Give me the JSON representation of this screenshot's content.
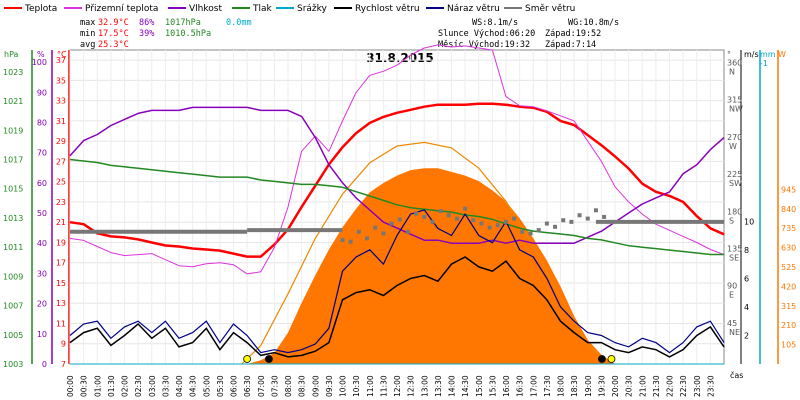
{
  "chart_data": {
    "type": "line",
    "title": "31.8.2015",
    "xlabel": "čas",
    "legend": [
      {
        "name": "Teplota",
        "color": "#ff0000"
      },
      {
        "name": "Přizemní teplota",
        "color": "#dd33dd"
      },
      {
        "name": "Vlhkost",
        "color": "#8800bb"
      },
      {
        "name": "Tlak",
        "color": "#228822"
      },
      {
        "name": "Srážky",
        "color": "#00aacc"
      },
      {
        "name": "Rychlost větru",
        "color": "#000000"
      },
      {
        "name": "Náraz větru",
        "color": "#000088"
      },
      {
        "name": "Směr větru",
        "color": "#777777"
      }
    ],
    "stats": {
      "max_label": "max",
      "max_temp": "32.9°C",
      "max_hum": "86%",
      "max_press": "1017hPa",
      "rain": "0.0mm",
      "min_label": "min",
      "min_temp": "17.5°C",
      "min_hum": "39%",
      "min_press": "1010.5hPa",
      "avg_label": "avg",
      "avg_temp": "25.3°C",
      "ws": "WS:8.1m/s",
      "wg": "WG:10.8m/s",
      "sun_rise": "Slunce Východ:06:20",
      "sun_set": "Západ:19:52",
      "moon_rise": "Měsíc Východ:19:32",
      "moon_set": "Západ:7:14"
    },
    "axes": {
      "hpa_label": "hPa",
      "pct_label": "%",
      "c_label": "°C",
      "deg_label": "°",
      "ms_label": "m/s",
      "mm_label": "mm",
      "w_label": "W",
      "hpa_ticks": [
        "1003",
        "1005",
        "1007",
        "1009",
        "1011",
        "1013",
        "1015",
        "1017",
        "1019",
        "1021",
        "1023"
      ],
      "pct_ticks": [
        "0",
        "10",
        "20",
        "30",
        "40",
        "50",
        "60",
        "70",
        "80",
        "90",
        "100"
      ],
      "c_ticks": [
        "7",
        "9",
        "11",
        "13",
        "15",
        "17",
        "19",
        "21",
        "23",
        "25",
        "27",
        "29",
        "31",
        "33",
        "35",
        "37"
      ],
      "dir_ticks": [
        {
          "v": "360",
          "d": "N"
        },
        {
          "v": "315",
          "d": "NW"
        },
        {
          "v": "270",
          "d": "W"
        },
        {
          "v": "225",
          "d": "SW"
        },
        {
          "v": "180",
          "d": "S"
        },
        {
          "v": "135",
          "d": "SE"
        },
        {
          "v": "90",
          "d": "E"
        },
        {
          "v": "45",
          "d": "NE"
        }
      ],
      "ms_ticks": [
        "10",
        "8",
        "6",
        "4",
        "2"
      ],
      "ms_top": "-1",
      "w_ticks": [
        "945",
        "840",
        "735",
        "630",
        "525",
        "420",
        "315",
        "210",
        "105"
      ],
      "temp_range": [
        7,
        38
      ],
      "hum_range": [
        0,
        104
      ],
      "press_range": [
        1003,
        1024.5
      ],
      "dir_range": [
        0,
        380
      ],
      "wind_range": [
        0,
        22
      ],
      "solar_range": [
        0,
        1700
      ]
    },
    "x_ticks": [
      "00:00",
      "00:30",
      "01:00",
      "01:30",
      "02:00",
      "02:30",
      "03:00",
      "03:30",
      "04:00",
      "04:30",
      "05:00",
      "05:30",
      "06:00",
      "06:30",
      "07:00",
      "07:30",
      "08:00",
      "08:30",
      "09:00",
      "09:30",
      "10:00",
      "10:30",
      "11:00",
      "11:30",
      "12:00",
      "12:30",
      "13:00",
      "13:30",
      "14:00",
      "14:30",
      "15:00",
      "15:30",
      "16:00",
      "16:30",
      "17:00",
      "17:30",
      "18:00",
      "18:30",
      "19:00",
      "19:30",
      "20:00",
      "20:30",
      "21:00",
      "21:30",
      "22:00",
      "22:30",
      "23:00",
      "23:30"
    ],
    "series": [
      {
        "name": "Teplota",
        "color": "#ff0000",
        "axis": "temp",
        "width": 2.5,
        "x": [
          0,
          0.5,
          1,
          1.5,
          2,
          2.5,
          3,
          3.5,
          4,
          4.5,
          5,
          5.5,
          6,
          6.5,
          7,
          7.5,
          8,
          8.5,
          9,
          9.5,
          10,
          10.5,
          11,
          11.5,
          12,
          12.5,
          13,
          13.5,
          14,
          14.5,
          15,
          15.5,
          16,
          16.5,
          17,
          17.5,
          18,
          18.5,
          19,
          19.5,
          20,
          20.5,
          21,
          21.5,
          22,
          22.5,
          23,
          23.5,
          24
        ],
        "values": [
          21,
          20.8,
          19.9,
          19.6,
          19.5,
          19.3,
          19.0,
          18.7,
          18.6,
          18.4,
          18.3,
          18.2,
          17.9,
          17.6,
          17.6,
          18.8,
          20.3,
          22.5,
          24.6,
          26.7,
          28.4,
          29.8,
          30.8,
          31.4,
          31.8,
          32.1,
          32.4,
          32.6,
          32.6,
          32.6,
          32.7,
          32.7,
          32.6,
          32.4,
          32.3,
          31.9,
          31.0,
          30.6,
          29.6,
          28.6,
          27.5,
          26.3,
          24.8,
          24.0,
          23.6,
          23.0,
          21.6,
          20.4,
          19.8
        ]
      },
      {
        "name": "Přizemní teplota",
        "color": "#dd33dd",
        "axis": "temp",
        "width": 1,
        "x": [
          0,
          0.5,
          1,
          1.5,
          2,
          2.5,
          3,
          3.5,
          4,
          4.5,
          5,
          5.5,
          6,
          6.5,
          7,
          7.5,
          8,
          8.5,
          9,
          9.5,
          10,
          10.5,
          11,
          11.5,
          12,
          12.5,
          13,
          13.5,
          14,
          14.5,
          15,
          15.5,
          16,
          16.5,
          17,
          17.5,
          18,
          18.5,
          19,
          19.5,
          20,
          20.5,
          21,
          21.5,
          22,
          22.5,
          23,
          23.5,
          24
        ],
        "values": [
          19.4,
          19.2,
          18.6,
          18.0,
          17.7,
          17.8,
          17.9,
          17.3,
          16.7,
          16.6,
          16.9,
          17.0,
          16.8,
          15.9,
          16.1,
          18.5,
          22.5,
          28.0,
          29.5,
          28.0,
          31.0,
          33.8,
          35.5,
          35.9,
          36.5,
          37.5,
          38.2,
          38.5,
          38.3,
          38.4,
          38.2,
          38.0,
          33.4,
          32.5,
          32.4,
          32.0,
          31.5,
          31.0,
          29.0,
          27.0,
          24.5,
          23.0,
          21.8,
          20.8,
          20.2,
          19.6,
          19.0,
          18.3,
          17.8
        ]
      },
      {
        "name": "Vlhkost",
        "color": "#8800bb",
        "axis": "hum",
        "width": 1.5,
        "x": [
          0,
          0.5,
          1,
          1.5,
          2,
          2.5,
          3,
          3.5,
          4,
          4.5,
          5,
          5.5,
          6,
          6.5,
          7,
          7.5,
          8,
          8.5,
          9,
          9.5,
          10,
          10.5,
          11,
          11.5,
          12,
          12.5,
          13,
          13.5,
          14,
          14.5,
          15,
          15.5,
          16,
          16.5,
          17,
          17.5,
          18,
          18.5,
          19,
          19.5,
          20,
          20.5,
          21,
          21.5,
          22,
          22.5,
          23,
          23.5,
          24
        ],
        "values": [
          69,
          74,
          76,
          79,
          81,
          83,
          84,
          84,
          84,
          85,
          85,
          85,
          85,
          85,
          84,
          84,
          84,
          82,
          75,
          66,
          60,
          55,
          51,
          47,
          45,
          43,
          41,
          41,
          40,
          40,
          40,
          41,
          40,
          41,
          40,
          40,
          40,
          40,
          42,
          44,
          47,
          50,
          53,
          55,
          57,
          63,
          66,
          71,
          75
        ]
      },
      {
        "name": "Tlak",
        "color": "#228822",
        "axis": "press",
        "width": 1.5,
        "x": [
          0,
          0.5,
          1,
          1.5,
          2,
          2.5,
          3,
          3.5,
          4,
          4.5,
          5,
          5.5,
          6,
          6.5,
          7,
          7.5,
          8,
          8.5,
          9,
          9.5,
          10,
          10.5,
          11,
          11.5,
          12,
          12.5,
          13,
          13.5,
          14,
          14.5,
          15,
          15.5,
          16,
          16.5,
          17,
          17.5,
          18,
          18.5,
          19,
          19.5,
          20,
          20.5,
          21,
          21.5,
          22,
          22.5,
          23,
          23.5,
          24
        ],
        "values": [
          1017.0,
          1016.9,
          1016.8,
          1016.6,
          1016.5,
          1016.4,
          1016.3,
          1016.2,
          1016.1,
          1016.0,
          1015.9,
          1015.8,
          1015.8,
          1015.8,
          1015.6,
          1015.5,
          1015.4,
          1015.3,
          1015.3,
          1015.2,
          1015.1,
          1014.8,
          1014.5,
          1014.2,
          1013.9,
          1013.7,
          1013.6,
          1013.5,
          1013.4,
          1013.2,
          1013.1,
          1012.9,
          1012.6,
          1012.3,
          1012.1,
          1012.0,
          1011.9,
          1011.8,
          1011.6,
          1011.5,
          1011.3,
          1011.1,
          1011.0,
          1010.9,
          1010.8,
          1010.7,
          1010.6,
          1010.5,
          1010.5
        ]
      },
      {
        "name": "Srážky",
        "color": "#00aacc",
        "axis": "rain",
        "width": 1,
        "x": [
          0,
          24
        ],
        "values": [
          0,
          0
        ]
      }
    ],
    "solar": {
      "color": "#ff7700",
      "axis": "solar",
      "x": [
        6.5,
        7,
        7.5,
        8,
        8.5,
        9,
        9.5,
        10,
        10.5,
        11,
        11.5,
        12,
        12.5,
        13,
        13.5,
        14,
        14.5,
        15,
        15.5,
        16,
        16.5,
        17,
        17.5,
        18,
        18.5,
        19,
        19.5,
        20
      ],
      "values": [
        0,
        20,
        60,
        170,
        330,
        480,
        620,
        740,
        840,
        930,
        980,
        1020,
        1050,
        1060,
        1060,
        1040,
        1020,
        990,
        940,
        880,
        790,
        680,
        560,
        420,
        260,
        130,
        50,
        0
      ]
    },
    "solar_theory": {
      "color": "#ee8800",
      "axis": "solar",
      "x": [
        6.3,
        7,
        8,
        9,
        10,
        11,
        12,
        13,
        14,
        15,
        16,
        17,
        18,
        19,
        19.9
      ],
      "values": [
        0,
        100,
        380,
        680,
        920,
        1090,
        1180,
        1200,
        1170,
        1060,
        880,
        640,
        360,
        100,
        0
      ]
    },
    "wind_speed": {
      "color": "#000000",
      "axis": "wind",
      "x": [
        0,
        0.5,
        1,
        1.5,
        2,
        2.5,
        3,
        3.5,
        4,
        4.5,
        5,
        5.5,
        6,
        6.5,
        7,
        7.5,
        8,
        8.5,
        9,
        9.5,
        10,
        10.5,
        11,
        11.5,
        12,
        12.5,
        13,
        13.5,
        14,
        14.5,
        15,
        15.5,
        16,
        16.5,
        17,
        17.5,
        18,
        18.5,
        19,
        19.5,
        20,
        20.5,
        21,
        21.5,
        22,
        22.5,
        23,
        23.5,
        24
      ],
      "values": [
        1.5,
        2.2,
        2.5,
        1.3,
        2.0,
        2.8,
        1.8,
        2.5,
        1.2,
        1.5,
        2.5,
        1.0,
        2.2,
        1.5,
        0.6,
        0.8,
        0.5,
        0.6,
        0.9,
        1.5,
        4.5,
        5.0,
        5.2,
        4.8,
        5.5,
        6.0,
        6.2,
        5.8,
        7.0,
        7.5,
        6.8,
        6.5,
        7.2,
        6.0,
        5.5,
        4.5,
        3.0,
        2.2,
        1.5,
        1.5,
        1.0,
        0.8,
        1.2,
        1.0,
        0.5,
        1.0,
        2.0,
        2.6,
        1.2
      ]
    },
    "wind_gust": {
      "color": "#000088",
      "axis": "wind",
      "x": [
        0,
        0.5,
        1,
        1.5,
        2,
        2.5,
        3,
        3.5,
        4,
        4.5,
        5,
        5.5,
        6,
        6.5,
        7,
        7.5,
        8,
        8.5,
        9,
        9.5,
        10,
        10.5,
        11,
        11.5,
        12,
        12.5,
        13,
        13.5,
        14,
        14.5,
        15,
        15.5,
        16,
        16.5,
        17,
        17.5,
        18,
        18.5,
        19,
        19.5,
        20,
        20.5,
        21,
        21.5,
        22,
        22.5,
        23,
        23.5,
        24
      ],
      "values": [
        2.0,
        2.8,
        3.0,
        1.8,
        2.6,
        3.0,
        2.2,
        3.0,
        1.8,
        2.2,
        3.0,
        1.5,
        2.8,
        2.0,
        0.8,
        1.0,
        0.8,
        1.0,
        1.4,
        2.5,
        6.5,
        7.5,
        8.0,
        7.0,
        9.0,
        10.5,
        10.8,
        9.5,
        9.0,
        10.5,
        9.0,
        8.5,
        10.0,
        8.0,
        7.5,
        6.0,
        4.0,
        3.0,
        2.2,
        2.0,
        1.5,
        1.2,
        1.8,
        1.5,
        0.8,
        1.5,
        2.6,
        3.0,
        1.5
      ]
    },
    "wind_dir": {
      "color": "#777777",
      "axis": "dir",
      "x": [
        10.0,
        10.3,
        10.6,
        10.9,
        11.2,
        11.5,
        11.8,
        12.1,
        12.4,
        12.7,
        13.0,
        13.3,
        13.6,
        13.9,
        14.2,
        14.5,
        14.8,
        15.1,
        15.4,
        15.7,
        16.0,
        16.3,
        16.6,
        16.9,
        17.2,
        17.5,
        17.8,
        18.1,
        18.4,
        18.7,
        19.0,
        19.3,
        19.6
      ],
      "values": [
        150,
        148,
        160,
        152,
        165,
        158,
        170,
        175,
        160,
        182,
        178,
        172,
        185,
        180,
        176,
        188,
        174,
        170,
        165,
        168,
        172,
        176,
        160,
        158,
        162,
        170,
        166,
        174,
        172,
        180,
        176,
        186,
        178
      ]
    },
    "wind_dir_blocks": [
      {
        "x0": 0.0,
        "x1": 6.5,
        "value": 160
      },
      {
        "x0": 6.5,
        "x1": 10.0,
        "value": 162
      },
      {
        "x0": 19.3,
        "x1": 24.0,
        "value": 172
      }
    ],
    "markers": [
      {
        "x": 6.5,
        "type": "sunrise",
        "color": "#ffff00"
      },
      {
        "x": 7.3,
        "type": "moonset",
        "color": "#000000"
      },
      {
        "x": 19.52,
        "type": "moonrise",
        "color": "#000000"
      },
      {
        "x": 19.87,
        "type": "sunset",
        "color": "#ffff00"
      }
    ]
  }
}
